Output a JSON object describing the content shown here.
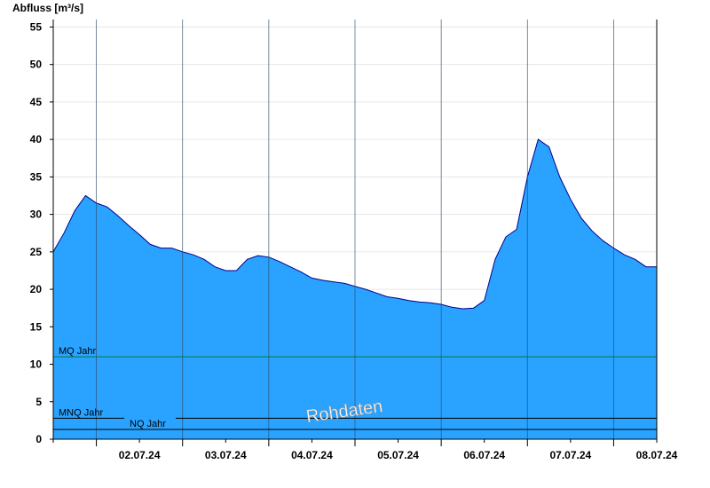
{
  "chart_data": {
    "type": "area",
    "ylabel": "Abfluss [m³/s]",
    "ylim": [
      0,
      56
    ],
    "yticks": [
      0,
      5,
      10,
      15,
      20,
      25,
      30,
      35,
      40,
      45,
      50,
      55
    ],
    "x_range_days": [
      "01.07.24 12:00",
      "08.07.24 12:00"
    ],
    "xtick_labels": [
      "02.07.24",
      "03.07.24",
      "04.07.24",
      "05.07.24",
      "06.07.24",
      "07.07.24",
      "08.07.24"
    ],
    "grid": true,
    "colors": {
      "fill": "#29a3ff",
      "outline": "#00008b",
      "mq_line": "#007a33",
      "ref_line": "#000000"
    },
    "reference_lines": [
      {
        "label": "MQ Jahr",
        "value": 11.0
      },
      {
        "label": "MNQ Jahr",
        "value": 2.8
      },
      {
        "label": "NQ Jahr",
        "value": 1.3
      }
    ],
    "watermark": "Rohdaten",
    "series": [
      {
        "x_hours": [
          0,
          3,
          6,
          9,
          12,
          15,
          18,
          21,
          24,
          27,
          30,
          33,
          36,
          39,
          42,
          45,
          48,
          51,
          54,
          57,
          60,
          63,
          66,
          69,
          72,
          75,
          78,
          81,
          84,
          87,
          90,
          93,
          96,
          99,
          102,
          105,
          108,
          111,
          114,
          117,
          120,
          123,
          126,
          129,
          132,
          135,
          138,
          141,
          144,
          147,
          150,
          153,
          156,
          159,
          162,
          165,
          168
        ],
        "values": [
          25.0,
          27.5,
          30.5,
          32.5,
          31.5,
          31.0,
          29.8,
          28.5,
          27.3,
          26.0,
          25.5,
          25.5,
          25.0,
          24.6,
          24.0,
          23.0,
          22.5,
          22.5,
          24.0,
          24.5,
          24.3,
          23.7,
          23.0,
          22.3,
          21.5,
          21.2,
          21.0,
          20.8,
          20.4,
          20.0,
          19.5,
          19.0,
          18.8,
          18.5,
          18.3,
          18.2,
          18.0,
          17.6,
          17.4,
          17.5,
          18.5,
          24.0,
          27.0,
          28.0,
          35.0,
          40.0,
          39.0,
          35.0,
          32.0,
          29.5,
          27.8,
          26.5,
          25.5,
          24.6,
          24.0,
          23.0,
          23.0
        ]
      }
    ]
  }
}
